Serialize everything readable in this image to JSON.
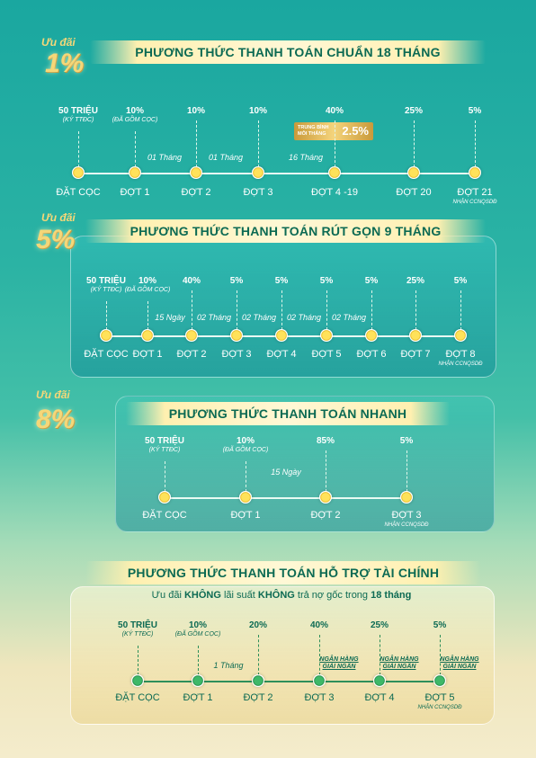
{
  "s1": {
    "uudai": "Ưu đãi",
    "pct": "1%",
    "title": "PHƯƠNG THỨC THANH TOÁN CHUẨN 18 THÁNG",
    "avg_label_1": "TRUNG BÌNH",
    "avg_label_2": "MỖI THÁNG",
    "avg_value": "2.5%",
    "steps": [
      {
        "label": "ĐẶT CỌC",
        "val": "50 TRIỆU",
        "sub": "(KÝ TTĐC)"
      },
      {
        "label": "ĐỢT 1",
        "val": "10%",
        "sub": "(ĐÃ GỒM CỌC)"
      },
      {
        "label": "ĐỢT 2",
        "val": "10%"
      },
      {
        "label": "ĐỢT 3",
        "val": "10%"
      },
      {
        "label": "ĐỢT 4 -19",
        "val": "40%"
      },
      {
        "label": "ĐỢT 20",
        "val": "25%"
      },
      {
        "label": "ĐỢT 21",
        "val": "5%",
        "note": "NHẬN CCNQSDĐ"
      }
    ],
    "gaps": [
      "01 Tháng",
      "01 Tháng",
      "16 Tháng"
    ]
  },
  "s2": {
    "uudai": "Ưu đãi",
    "pct": "5%",
    "title": "PHƯƠNG THỨC THANH TOÁN RÚT GỌN 9 THÁNG",
    "steps": [
      {
        "label": "ĐẶT CỌC",
        "val": "50 TRIỆU",
        "sub": "(KÝ TTĐC)"
      },
      {
        "label": "ĐỢT 1",
        "val": "10%",
        "sub": "(ĐÃ GỒM CỌC)"
      },
      {
        "label": "ĐỢT 2",
        "val": "40%"
      },
      {
        "label": "ĐỢT 3",
        "val": "5%"
      },
      {
        "label": "ĐỢT 4",
        "val": "5%"
      },
      {
        "label": "ĐỢT 5",
        "val": "5%"
      },
      {
        "label": "ĐỢT 6",
        "val": "5%"
      },
      {
        "label": "ĐỢT 7",
        "val": "25%"
      },
      {
        "label": "ĐỢT 8",
        "val": "5%",
        "note": "NHẬN CCNQSDĐ"
      }
    ],
    "gaps": [
      "15 Ngày",
      "02 Tháng",
      "02 Tháng",
      "02 Tháng",
      "02 Tháng"
    ]
  },
  "s3": {
    "uudai": "Ưu đãi",
    "pct": "8%",
    "title": "PHƯƠNG THỨC THANH TOÁN NHANH",
    "steps": [
      {
        "label": "ĐẶT CỌC",
        "val": "50 TRIỆU",
        "sub": "(KÝ TTĐC)"
      },
      {
        "label": "ĐỢT 1",
        "val": "10%",
        "sub": "(ĐÃ GỒM CỌC)"
      },
      {
        "label": "ĐỢT 2",
        "val": "85%"
      },
      {
        "label": "ĐỢT 3",
        "val": "5%",
        "note": "NHẬN CCNQSDĐ"
      }
    ],
    "gaps": [
      "15 Ngày"
    ]
  },
  "s4": {
    "title": "PHƯƠNG THỨC THANH TOÁN HỖ TRỢ TÀI CHÍNH",
    "tagline_a": "Ưu đãi ",
    "tagline_b": "KHÔNG",
    "tagline_c": " lãi suất ",
    "tagline_d": "KHÔNG",
    "tagline_e": " trả nợ gốc trong ",
    "tagline_f": "18 tháng",
    "bank_1": "NGÂN HÀNG",
    "bank_2": "GIẢI NGÂN",
    "steps": [
      {
        "label": "ĐẶT CỌC",
        "val": "50 TRIỆU",
        "sub": "(KÝ TTĐC)"
      },
      {
        "label": "ĐỢT 1",
        "val": "10%",
        "sub": "(ĐÃ GỒM CỌC)"
      },
      {
        "label": "ĐỢT 2",
        "val": "20%"
      },
      {
        "label": "ĐỢT 3",
        "val": "40%"
      },
      {
        "label": "ĐỢT 4",
        "val": "25%"
      },
      {
        "label": "ĐỢT 5",
        "val": "5%",
        "note": "NHẬN CCNQSDĐ"
      }
    ],
    "gaps": [
      "1 Tháng"
    ]
  }
}
